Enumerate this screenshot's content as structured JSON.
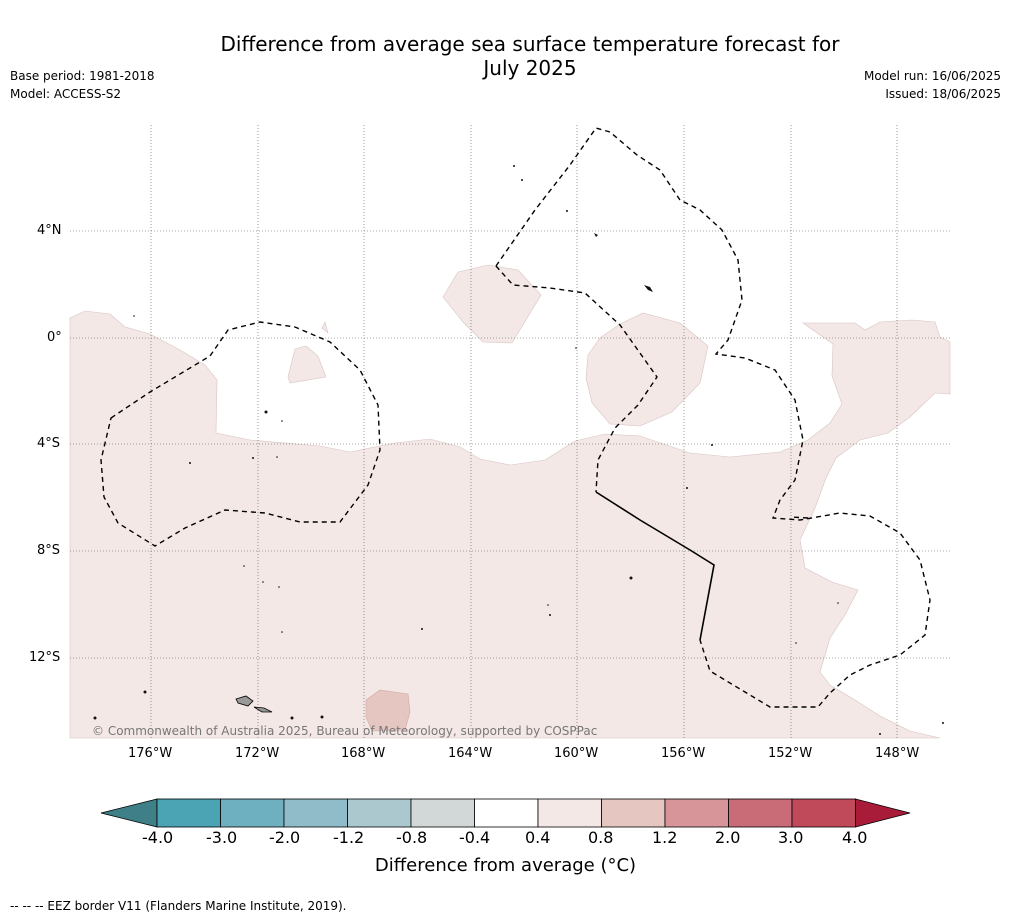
{
  "title": "Difference from average sea surface temperature forecast for July 2025",
  "title_line1": "Difference from average sea surface temperature forecast for",
  "title_line2": "July 2025",
  "meta_left": [
    "Base period: 1981-2018",
    "Model: ACCESS-S2"
  ],
  "meta_right": [
    "Model run: 16/06/2025",
    "Issued: 18/06/2025"
  ],
  "map": {
    "lat_labels": [
      "4°N",
      "0°",
      "4°S",
      "8°S",
      "12°S"
    ],
    "lon_labels": [
      "176°W",
      "172°W",
      "168°W",
      "164°W",
      "160°W",
      "156°W",
      "152°W",
      "148°W"
    ],
    "copyright": "© Commonwealth of Australia 2025, Bureau of Meteorology, supported by COSPPac"
  },
  "colorbar": {
    "ticks": [
      "-4.0",
      "-3.0",
      "-2.0",
      "-1.2",
      "-0.8",
      "-0.4",
      "0.4",
      "0.8",
      "1.2",
      "2.0",
      "3.0",
      "4.0"
    ],
    "colors": [
      "#3e7f88",
      "#4aa4b4",
      "#6fb0c0",
      "#8fbcc8",
      "#aac8ce",
      "#d2d8d8",
      "#ffffff",
      "#f3e8e6",
      "#e6c6c1",
      "#d7959a",
      "#ca6b78",
      "#c04a5a",
      "#a81c3a"
    ],
    "title": "Difference from average (°C)"
  },
  "footer": "--  --  -- EEZ border V11 (Flanders Marine Institute, 2019)."
}
